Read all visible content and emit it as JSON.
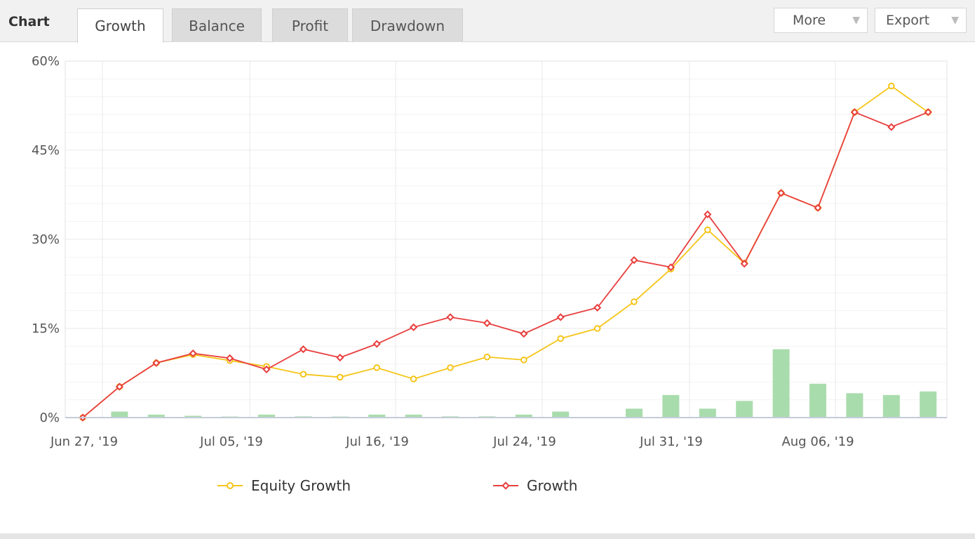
{
  "header": {
    "title": "Chart",
    "tabs": [
      {
        "label": "Growth",
        "active": true
      },
      {
        "label": "Balance",
        "active": false
      },
      {
        "label": "Profit",
        "active": false
      },
      {
        "label": "Drawdown",
        "active": false
      }
    ],
    "more_label": "More",
    "export_label": "Export",
    "dropdown_icon": "triangle-down-icon"
  },
  "colors": {
    "equity_line": "#f5c518",
    "growth_line": "#e83e3e",
    "bars": "#a9dcad",
    "grid": "#e8e8e8"
  },
  "chart_data": {
    "type": "line",
    "title": "",
    "ylabel": "",
    "xlabel": "",
    "ylim": [
      0,
      60
    ],
    "yticks": [
      "0%",
      "15%",
      "30%",
      "45%",
      "60%"
    ],
    "ytick_values": [
      0,
      15,
      30,
      45,
      60
    ],
    "xticks": [
      "Jun 27, '19",
      "Jul 05, '19",
      "Jul 16, '19",
      "Jul 24, '19",
      "Jul 31, '19",
      "Aug 06, '19"
    ],
    "point_count": 25,
    "series": [
      {
        "name": "Equity Growth",
        "values": [
          0,
          5.2,
          9.2,
          10.6,
          9.6,
          8.6,
          7.3,
          6.8,
          8.4,
          6.5,
          8.4,
          10.2,
          9.7,
          13.3,
          15.0,
          19.5,
          25.0,
          31.6,
          26.0,
          37.8,
          35.3,
          51.4,
          55.8,
          51.4,
          null
        ]
      },
      {
        "name": "Growth",
        "values": [
          0,
          5.2,
          9.2,
          10.8,
          10.0,
          8.1,
          11.5,
          10.1,
          12.4,
          15.2,
          16.9,
          15.9,
          14.1,
          16.9,
          18.5,
          26.5,
          25.3,
          34.2,
          25.9,
          37.8,
          35.3,
          51.4,
          48.9,
          51.4,
          null
        ]
      }
    ],
    "bar_series": {
      "name": "",
      "values": [
        null,
        1.0,
        0.5,
        0.3,
        0.1,
        0.5,
        0.2,
        0.1,
        0.5,
        0.5,
        0.2,
        0.2,
        0.5,
        1.0,
        null,
        1.5,
        3.8,
        1.5,
        2.8,
        11.5,
        5.7,
        4.1,
        3.8,
        4.4,
        null
      ]
    },
    "grid": true,
    "legend": "bottom-center"
  }
}
